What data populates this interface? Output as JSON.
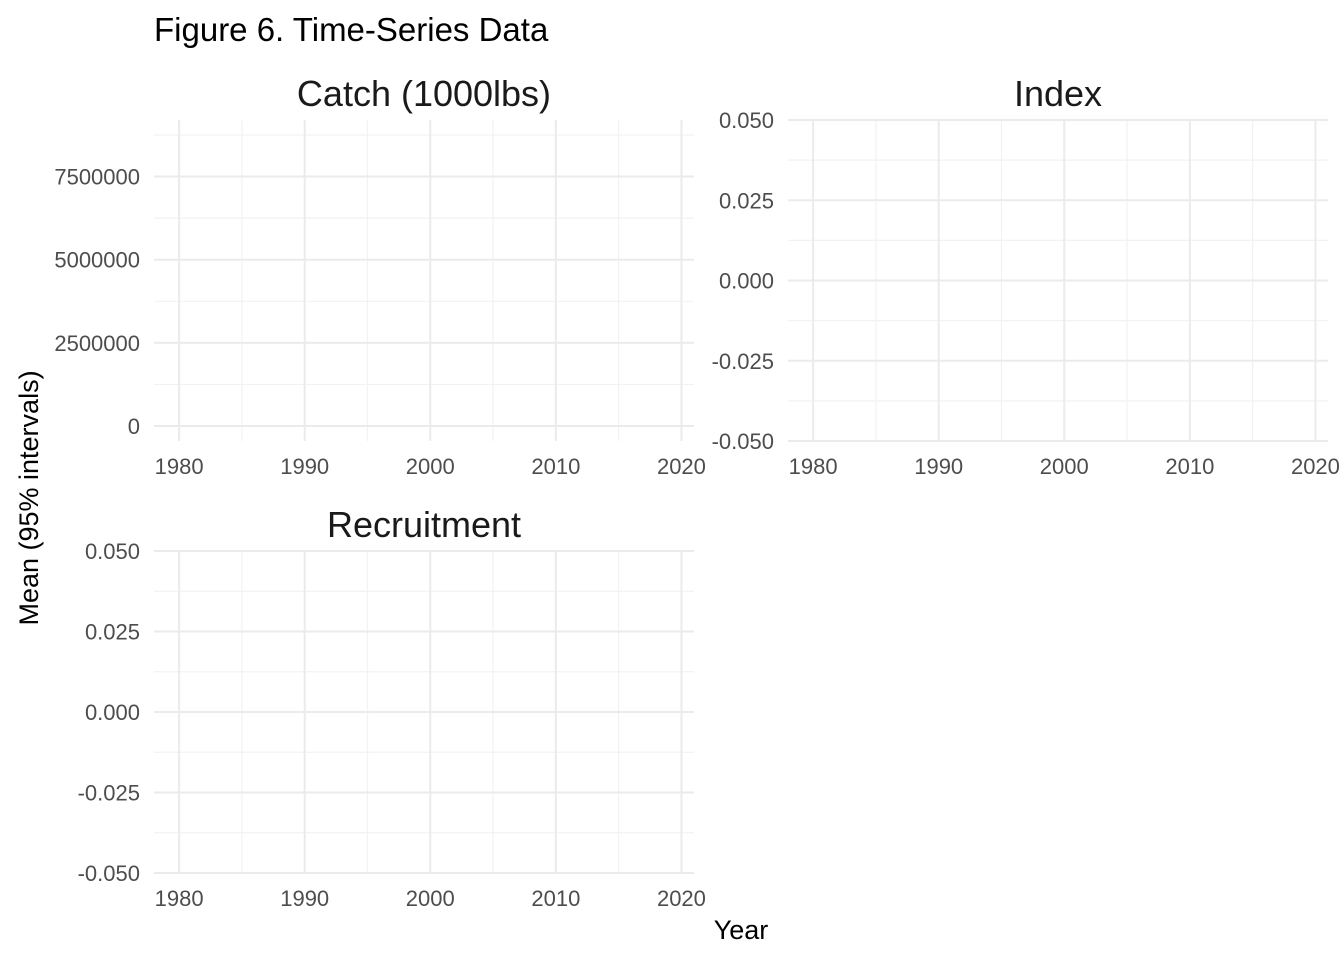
{
  "figure": {
    "title": "Figure 6. Time-Series Data",
    "xlabel": "Year",
    "ylabel": "Mean (95% intervals)"
  },
  "chart_data": [
    {
      "type": "line",
      "title": "Catch (1000lbs)",
      "x_ticks": [
        "1980",
        "1990",
        "2000",
        "2010",
        "2020"
      ],
      "x_tick_values": [
        1980,
        1990,
        2000,
        2010,
        2020
      ],
      "xlim": [
        1978,
        2021
      ],
      "y_ticks": [
        "0",
        "2500000",
        "5000000",
        "7500000"
      ],
      "y_tick_values": [
        0,
        2500000,
        5000000,
        7500000
      ],
      "ylim": [
        -450000,
        9200000
      ],
      "series": [],
      "grid": true
    },
    {
      "type": "line",
      "title": "Index",
      "x_ticks": [
        "1980",
        "1990",
        "2000",
        "2010",
        "2020"
      ],
      "x_tick_values": [
        1980,
        1990,
        2000,
        2010,
        2020
      ],
      "xlim": [
        1978,
        2021
      ],
      "y_ticks": [
        "-0.050",
        "-0.025",
        "0.000",
        "0.025",
        "0.050"
      ],
      "y_tick_values": [
        -0.05,
        -0.025,
        0,
        0.025,
        0.05
      ],
      "ylim": [
        -0.05,
        0.05
      ],
      "series": [],
      "grid": true
    },
    {
      "type": "line",
      "title": "Recruitment",
      "x_ticks": [
        "1980",
        "1990",
        "2000",
        "2010",
        "2020"
      ],
      "x_tick_values": [
        1980,
        1990,
        2000,
        2010,
        2020
      ],
      "xlim": [
        1978,
        2021
      ],
      "y_ticks": [
        "-0.050",
        "-0.025",
        "0.000",
        "0.025",
        "0.050"
      ],
      "y_tick_values": [
        -0.05,
        -0.025,
        0,
        0.025,
        0.05
      ],
      "ylim": [
        -0.05,
        0.05
      ],
      "series": [],
      "grid": true
    }
  ]
}
